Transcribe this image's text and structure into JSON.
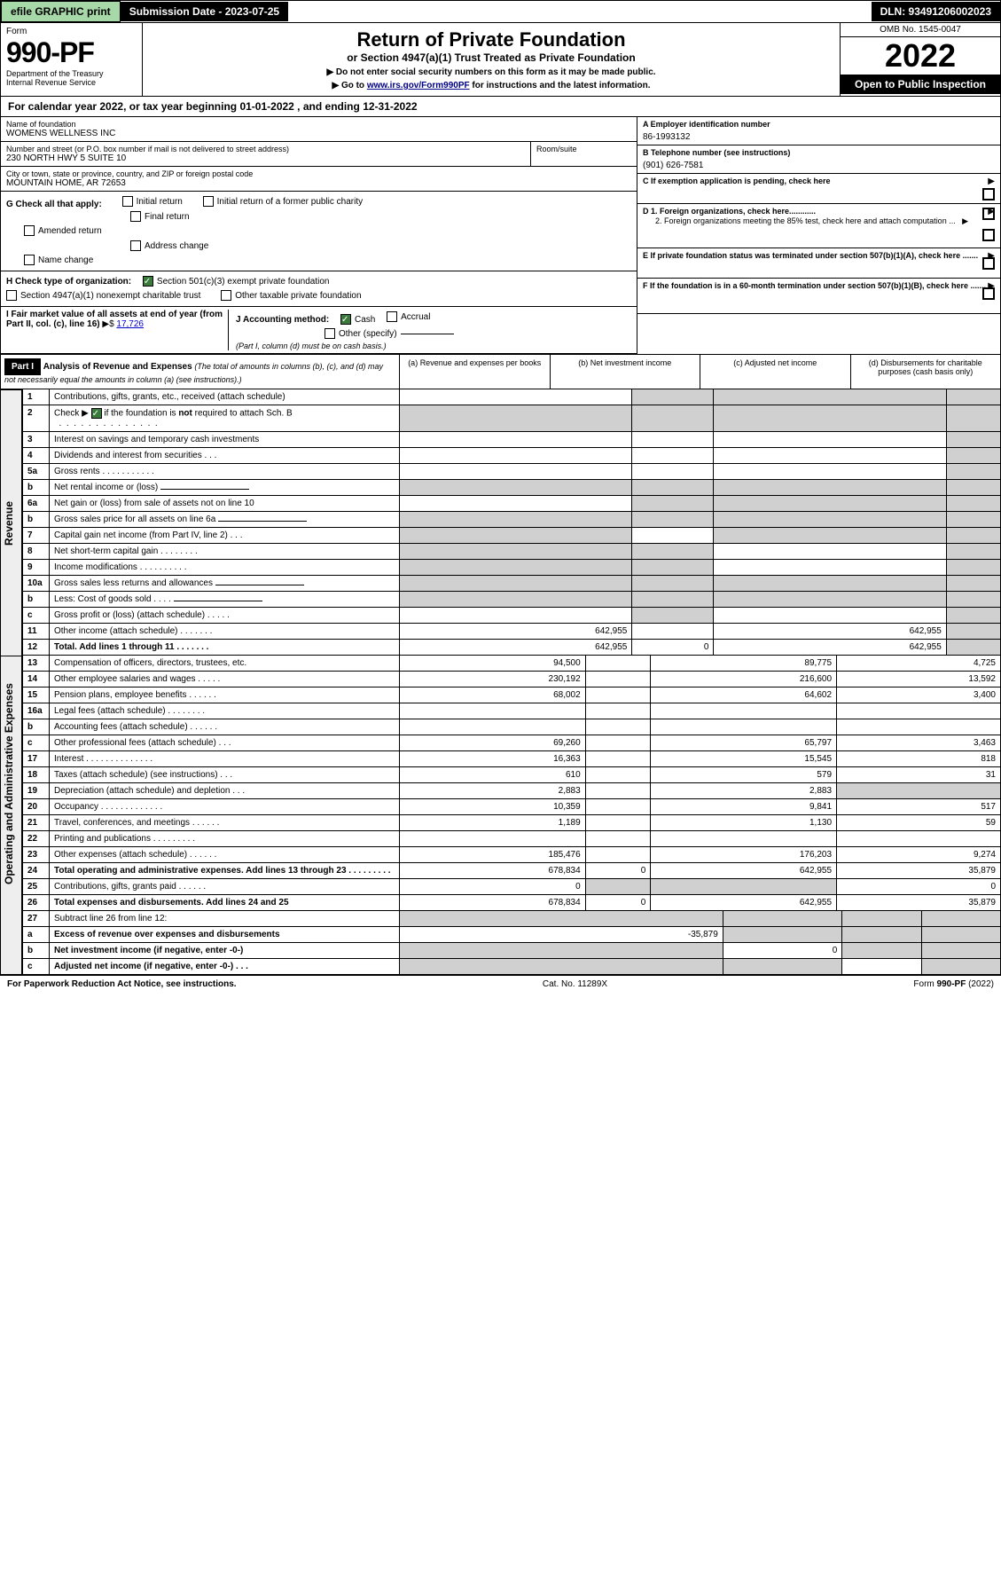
{
  "topbar": {
    "efile": "efile GRAPHIC print",
    "submission": "Submission Date - 2023-07-25",
    "dln": "DLN: 93491206002023"
  },
  "header": {
    "form_label": "Form",
    "form_number": "990-PF",
    "dept": "Department of the Treasury",
    "irs": "Internal Revenue Service",
    "title": "Return of Private Foundation",
    "subtitle": "or Section 4947(a)(1) Trust Treated as Private Foundation",
    "instr1": "▶ Do not enter social security numbers on this form as it may be made public.",
    "instr2_pre": "▶ Go to ",
    "instr2_link": "www.irs.gov/Form990PF",
    "instr2_post": " for instructions and the latest information.",
    "omb": "OMB No. 1545-0047",
    "year": "2022",
    "open": "Open to Public Inspection"
  },
  "calyear": {
    "text_pre": "For calendar year 2022, or tax year beginning ",
    "begin": "01-01-2022",
    "text_mid": " , and ending ",
    "end": "12-31-2022"
  },
  "entity": {
    "name_label": "Name of foundation",
    "name": "WOMENS WELLNESS INC",
    "addr_label": "Number and street (or P.O. box number if mail is not delivered to street address)",
    "addr": "230 NORTH HWY 5 SUITE 10",
    "room_label": "Room/suite",
    "city_label": "City or town, state or province, country, and ZIP or foreign postal code",
    "city": "MOUNTAIN HOME, AR  72653",
    "ein_label": "A Employer identification number",
    "ein": "86-1993132",
    "phone_label": "B Telephone number (see instructions)",
    "phone": "(901) 626-7581",
    "c_label": "C If exemption application is pending, check here",
    "d1_label": "D 1. Foreign organizations, check here............",
    "d2_label": "2. Foreign organizations meeting the 85% test, check here and attach computation ...",
    "e_label": "E If private foundation status was terminated under section 507(b)(1)(A), check here .......",
    "f_label": "F If the foundation is in a 60-month termination under section 507(b)(1)(B), check here .......",
    "g_label": "G Check all that apply:",
    "g_opts": [
      "Initial return",
      "Initial return of a former public charity",
      "Final return",
      "Amended return",
      "Address change",
      "Name change"
    ],
    "h_label": "H Check type of organization:",
    "h1": "Section 501(c)(3) exempt private foundation",
    "h2": "Section 4947(a)(1) nonexempt charitable trust",
    "h3": "Other taxable private foundation",
    "i_label": "I Fair market value of all assets at end of year (from Part II, col. (c), line 16)",
    "i_val": "17,726",
    "j_label": "J Accounting method:",
    "j_cash": "Cash",
    "j_accrual": "Accrual",
    "j_other": "Other (specify)",
    "j_note": "(Part I, column (d) must be on cash basis.)"
  },
  "part1": {
    "label": "Part I",
    "title": "Analysis of Revenue and Expenses",
    "title_note": "(The total of amounts in columns (b), (c), and (d) may not necessarily equal the amounts in column (a) (see instructions).)",
    "cols": {
      "a": "(a) Revenue and expenses per books",
      "b": "(b) Net investment income",
      "c": "(c) Adjusted net income",
      "d": "(d) Disbursements for charitable purposes (cash basis only)"
    }
  },
  "sections": {
    "revenue": "Revenue",
    "expenses": "Operating and Administrative Expenses"
  },
  "rows": [
    {
      "sec": "rev",
      "ln": "1",
      "desc": "Contributions, gifts, grants, etc., received (attach schedule)",
      "a": "",
      "b": "g",
      "c": "g",
      "d": "g"
    },
    {
      "sec": "rev",
      "ln": "2",
      "desc": "Check ▶ ☑ if the foundation is not required to attach Sch. B     .  .  .  .  .  .  .  .  .  .  .  .  .  .  .  .",
      "a": "g",
      "b": "g",
      "c": "g",
      "d": "g",
      "schb": true
    },
    {
      "sec": "rev",
      "ln": "3",
      "desc": "Interest on savings and temporary cash investments",
      "a": "",
      "b": "",
      "c": "",
      "d": "g"
    },
    {
      "sec": "rev",
      "ln": "4",
      "desc": "Dividends and interest from securities    .   .   .",
      "a": "",
      "b": "",
      "c": "",
      "d": "g"
    },
    {
      "sec": "rev",
      "ln": "5a",
      "desc": "Gross rents      .   .   .   .   .   .   .   .   .   .   .",
      "a": "",
      "b": "",
      "c": "",
      "d": "g"
    },
    {
      "sec": "rev",
      "ln": "b",
      "desc": "Net rental income or (loss)",
      "a": "g",
      "b": "g",
      "c": "g",
      "d": "g",
      "short": true
    },
    {
      "sec": "rev",
      "ln": "6a",
      "desc": "Net gain or (loss) from sale of assets not on line 10",
      "a": "",
      "b": "g",
      "c": "g",
      "d": "g"
    },
    {
      "sec": "rev",
      "ln": "b",
      "desc": "Gross sales price for all assets on line 6a",
      "a": "g",
      "b": "g",
      "c": "g",
      "d": "g",
      "short": true
    },
    {
      "sec": "rev",
      "ln": "7",
      "desc": "Capital gain net income (from Part IV, line 2)   .   .   .",
      "a": "g",
      "b": "",
      "c": "g",
      "d": "g"
    },
    {
      "sec": "rev",
      "ln": "8",
      "desc": "Net short-term capital gain  .   .   .   .   .   .   .   .",
      "a": "g",
      "b": "g",
      "c": "",
      "d": "g"
    },
    {
      "sec": "rev",
      "ln": "9",
      "desc": "Income modifications .   .   .   .   .   .   .   .   .   .",
      "a": "g",
      "b": "g",
      "c": "",
      "d": "g"
    },
    {
      "sec": "rev",
      "ln": "10a",
      "desc": "Gross sales less returns and allowances",
      "a": "g",
      "b": "g",
      "c": "g",
      "d": "g",
      "short": true
    },
    {
      "sec": "rev",
      "ln": "b",
      "desc": "Less: Cost of goods sold    .   .   .   .",
      "a": "g",
      "b": "g",
      "c": "g",
      "d": "g",
      "short": true
    },
    {
      "sec": "rev",
      "ln": "c",
      "desc": "Gross profit or (loss) (attach schedule)    .   .   .   .   .",
      "a": "",
      "b": "g",
      "c": "",
      "d": "g"
    },
    {
      "sec": "rev",
      "ln": "11",
      "desc": "Other income (attach schedule)   .   .   .   .   .   .   .",
      "a": "642,955",
      "b": "",
      "c": "642,955",
      "d": "g"
    },
    {
      "sec": "rev",
      "ln": "12",
      "desc": "Total. Add lines 1 through 11   .   .   .   .   .   .   .",
      "a": "642,955",
      "b": "0",
      "c": "642,955",
      "d": "g",
      "bold": true
    },
    {
      "sec": "exp",
      "ln": "13",
      "desc": "Compensation of officers, directors, trustees, etc.",
      "a": "94,500",
      "b": "",
      "c": "89,775",
      "d": "4,725"
    },
    {
      "sec": "exp",
      "ln": "14",
      "desc": "Other employee salaries and wages   .   .   .   .   .",
      "a": "230,192",
      "b": "",
      "c": "216,600",
      "d": "13,592"
    },
    {
      "sec": "exp",
      "ln": "15",
      "desc": "Pension plans, employee benefits .   .   .   .   .   .",
      "a": "68,002",
      "b": "",
      "c": "64,602",
      "d": "3,400"
    },
    {
      "sec": "exp",
      "ln": "16a",
      "desc": "Legal fees (attach schedule) .   .   .   .   .   .   .   .",
      "a": "",
      "b": "",
      "c": "",
      "d": ""
    },
    {
      "sec": "exp",
      "ln": "b",
      "desc": "Accounting fees (attach schedule) .   .   .   .   .   .",
      "a": "",
      "b": "",
      "c": "",
      "d": ""
    },
    {
      "sec": "exp",
      "ln": "c",
      "desc": "Other professional fees (attach schedule)    .   .   .",
      "a": "69,260",
      "b": "",
      "c": "65,797",
      "d": "3,463"
    },
    {
      "sec": "exp",
      "ln": "17",
      "desc": "Interest .   .   .   .   .   .   .   .   .   .   .   .   .   .",
      "a": "16,363",
      "b": "",
      "c": "15,545",
      "d": "818"
    },
    {
      "sec": "exp",
      "ln": "18",
      "desc": "Taxes (attach schedule) (see instructions)    .   .   .",
      "a": "610",
      "b": "",
      "c": "579",
      "d": "31"
    },
    {
      "sec": "exp",
      "ln": "19",
      "desc": "Depreciation (attach schedule) and depletion   .   .   .",
      "a": "2,883",
      "b": "",
      "c": "2,883",
      "d": "g"
    },
    {
      "sec": "exp",
      "ln": "20",
      "desc": "Occupancy .   .   .   .   .   .   .   .   .   .   .   .   .",
      "a": "10,359",
      "b": "",
      "c": "9,841",
      "d": "517"
    },
    {
      "sec": "exp",
      "ln": "21",
      "desc": "Travel, conferences, and meetings .   .   .   .   .   .",
      "a": "1,189",
      "b": "",
      "c": "1,130",
      "d": "59"
    },
    {
      "sec": "exp",
      "ln": "22",
      "desc": "Printing and publications .   .   .   .   .   .   .   .   .",
      "a": "",
      "b": "",
      "c": "",
      "d": ""
    },
    {
      "sec": "exp",
      "ln": "23",
      "desc": "Other expenses (attach schedule) .   .   .   .   .   .",
      "a": "185,476",
      "b": "",
      "c": "176,203",
      "d": "9,274"
    },
    {
      "sec": "exp",
      "ln": "24",
      "desc": "Total operating and administrative expenses. Add lines 13 through 23   .   .   .   .   .   .   .   .   .",
      "a": "678,834",
      "b": "0",
      "c": "642,955",
      "d": "35,879",
      "bold": true
    },
    {
      "sec": "exp",
      "ln": "25",
      "desc": "Contributions, gifts, grants paid    .   .   .   .   .   .",
      "a": "0",
      "b": "g",
      "c": "g",
      "d": "0"
    },
    {
      "sec": "exp",
      "ln": "26",
      "desc": "Total expenses and disbursements. Add lines 24 and 25",
      "a": "678,834",
      "b": "0",
      "c": "642,955",
      "d": "35,879",
      "bold": true
    },
    {
      "sec": "none",
      "ln": "27",
      "desc": "Subtract line 26 from line 12:",
      "a": "g",
      "b": "g",
      "c": "g",
      "d": "g"
    },
    {
      "sec": "none",
      "ln": "a",
      "desc": "Excess of revenue over expenses and disbursements",
      "a": "-35,879",
      "b": "g",
      "c": "g",
      "d": "g",
      "bold": true
    },
    {
      "sec": "none",
      "ln": "b",
      "desc": "Net investment income (if negative, enter -0-)",
      "a": "g",
      "b": "0",
      "c": "g",
      "d": "g",
      "bold": true
    },
    {
      "sec": "none",
      "ln": "c",
      "desc": "Adjusted net income (if negative, enter -0-)   .   .   .",
      "a": "g",
      "b": "g",
      "c": "",
      "d": "g",
      "bold": true
    }
  ],
  "footer": {
    "left": "For Paperwork Reduction Act Notice, see instructions.",
    "mid": "Cat. No. 11289X",
    "right": "Form 990-PF (2022)"
  },
  "colors": {
    "greenbtn": "#a7d8a8",
    "grey": "#d0d0d0",
    "link": "#0000cc"
  }
}
